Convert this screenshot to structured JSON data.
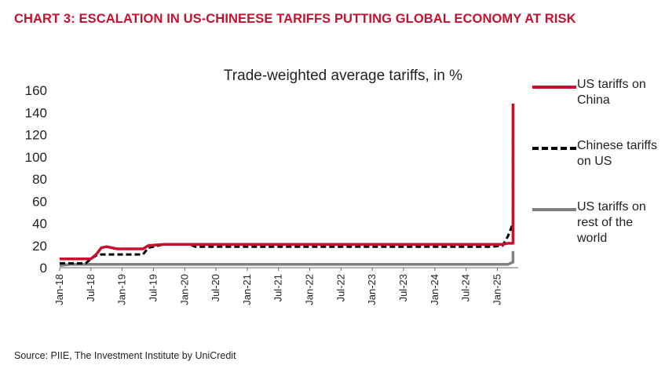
{
  "heading": "CHART 3: ESCALATION IN US-CHINEESE TARIFFS PUTTING GLOBAL ECONOMY AT RISK",
  "source": "Source: PIIE, The Investment Institute by UniCredit",
  "colors": {
    "heading": "#c8102e",
    "us_china": "#c8102e",
    "china_us": "#000000",
    "us_row": "#808080"
  },
  "chart_data": {
    "type": "line",
    "title": "Trade-weighted average tariffs, in %",
    "xlabel": "",
    "ylabel": "",
    "ylim": [
      0,
      160
    ],
    "yticks": [
      "0",
      "20",
      "40",
      "60",
      "80",
      "100",
      "120",
      "140",
      "160"
    ],
    "xlim": [
      "2018-01",
      "2025-05"
    ],
    "xticks": [
      "Jan-18",
      "Jul-18",
      "Jan-19",
      "Jul-19",
      "Jan-20",
      "Jul-20",
      "Jan-21",
      "Jul-21",
      "Jan-22",
      "Jul-22",
      "Jan-23",
      "Jul-23",
      "Jan-24",
      "Jul-24",
      "Jan-25"
    ],
    "grid": false,
    "legend_position": "right",
    "series": [
      {
        "name": "US tariffs on China",
        "style": "solid",
        "color": "#c8102e",
        "points": [
          [
            "2018-01",
            8
          ],
          [
            "2018-07",
            8
          ],
          [
            "2018-08",
            12
          ],
          [
            "2018-09",
            18
          ],
          [
            "2018-10",
            19
          ],
          [
            "2018-12",
            17
          ],
          [
            "2019-05",
            17
          ],
          [
            "2019-06",
            20
          ],
          [
            "2019-09",
            21
          ],
          [
            "2020-02",
            21
          ],
          [
            "2020-03",
            21
          ],
          [
            "2024-12",
            21
          ],
          [
            "2025-01",
            21
          ],
          [
            "2025-02",
            21
          ],
          [
            "2025-03",
            22
          ],
          [
            "2025-04",
            22
          ],
          [
            "2025-04",
            148
          ]
        ]
      },
      {
        "name": "Chinese tariffs on US",
        "style": "dashed",
        "color": "#000000",
        "points": [
          [
            "2018-01",
            4
          ],
          [
            "2018-06",
            4
          ],
          [
            "2018-07",
            8
          ],
          [
            "2018-08",
            11
          ],
          [
            "2018-09",
            12
          ],
          [
            "2019-05",
            12
          ],
          [
            "2019-06",
            18
          ],
          [
            "2019-09",
            21
          ],
          [
            "2020-02",
            21
          ],
          [
            "2020-03",
            19
          ],
          [
            "2024-12",
            19
          ],
          [
            "2025-02",
            20
          ],
          [
            "2025-03",
            28
          ],
          [
            "2025-04",
            40
          ],
          [
            "2025-04",
            135
          ]
        ]
      },
      {
        "name": "US tariffs on rest of the world",
        "style": "solid",
        "color": "#808080",
        "points": [
          [
            "2018-01",
            2
          ],
          [
            "2018-03",
            3
          ],
          [
            "2018-06",
            3
          ],
          [
            "2019-01",
            3
          ],
          [
            "2025-01",
            3
          ],
          [
            "2025-03",
            3
          ],
          [
            "2025-04",
            5
          ],
          [
            "2025-04",
            15
          ]
        ]
      }
    ]
  }
}
